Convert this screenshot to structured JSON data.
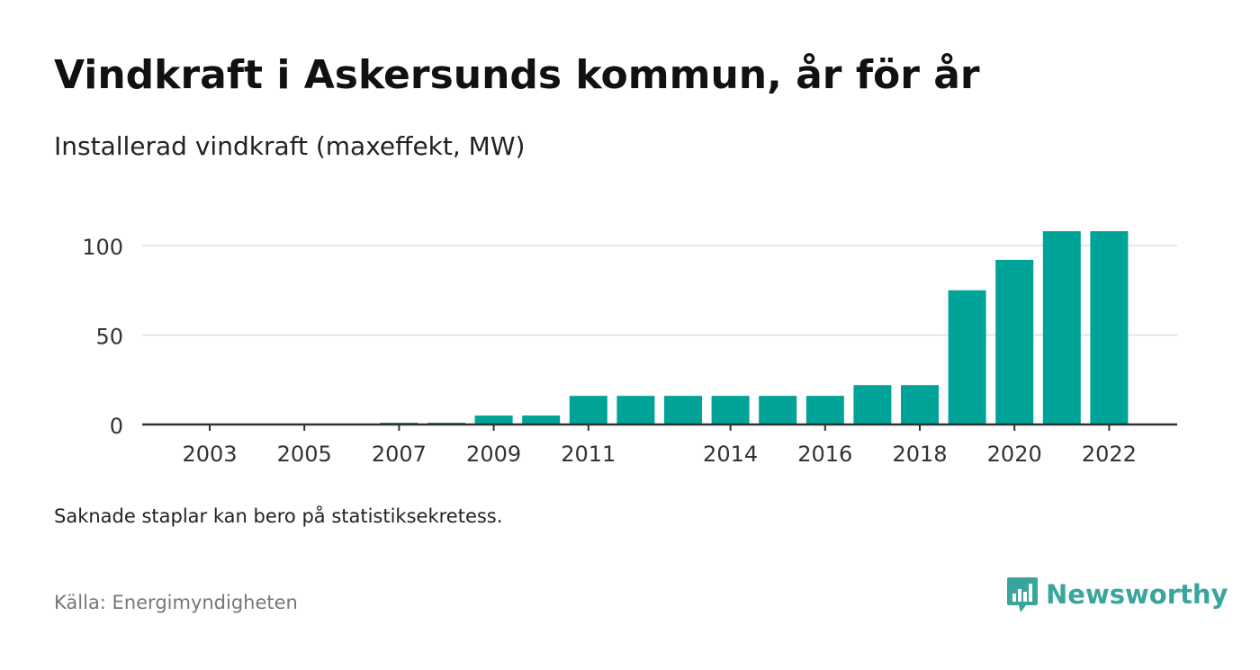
{
  "title": "Vindkraft i Askersunds kommun, år för år",
  "subtitle": "Installerad vindkraft (maxeffekt, MW)",
  "note": "Saknade staplar kan bero på statistiksekretess.",
  "source": "Källa: Energimyndigheten",
  "brand": {
    "name": "Newsworthy",
    "color": "#3aa59c",
    "icon": "newsworthy-logo-icon"
  },
  "colors": {
    "bar": "#00a398",
    "grid": "#dddddd",
    "axis": "#333333",
    "text": "#333333"
  },
  "chart_data": {
    "type": "bar",
    "title": "",
    "xlabel": "",
    "ylabel": "",
    "categories": [
      "2003",
      "2004",
      "2005",
      "2006",
      "2007",
      "2008",
      "2009",
      "2010",
      "2011",
      "2012",
      "2013",
      "2014",
      "2015",
      "2016",
      "2017",
      "2018",
      "2019",
      "2020",
      "2021",
      "2022"
    ],
    "values": [
      0,
      0,
      0,
      0,
      1,
      1,
      5,
      5,
      16,
      16,
      16,
      16,
      16,
      16,
      22,
      22,
      75,
      92,
      108,
      108
    ],
    "x_tick_labels": [
      "2003",
      "2005",
      "2007",
      "2009",
      "2011",
      "2014",
      "2016",
      "2018",
      "2020",
      "2022"
    ],
    "y_ticks": [
      0,
      50,
      100
    ],
    "y_tick_labels": [
      "0",
      "50",
      "100"
    ],
    "ylim": [
      0,
      110
    ],
    "grid": true,
    "legend": "none"
  }
}
